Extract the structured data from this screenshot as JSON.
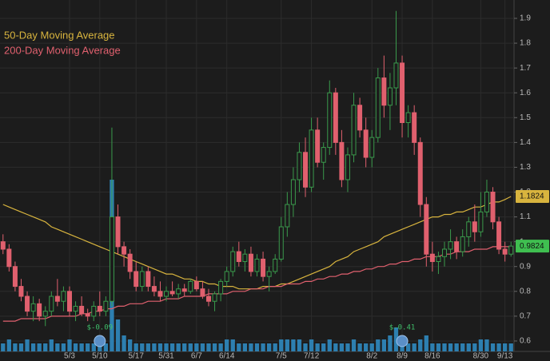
{
  "chart_data": {
    "type": "candlestick",
    "categories": [
      null,
      null,
      null,
      null,
      null,
      null,
      null,
      null,
      null,
      null,
      null,
      "5/3",
      null,
      null,
      null,
      null,
      "5/10",
      null,
      null,
      null,
      null,
      null,
      "5/17",
      null,
      null,
      null,
      null,
      "5/31",
      null,
      null,
      null,
      null,
      "6/7",
      null,
      null,
      null,
      null,
      "6/14",
      null,
      null,
      null,
      null,
      null,
      null,
      null,
      null,
      "7/5",
      null,
      null,
      null,
      null,
      "7/12",
      null,
      null,
      null,
      null,
      null,
      null,
      null,
      null,
      null,
      "8/2",
      null,
      null,
      null,
      null,
      "8/9",
      null,
      null,
      null,
      null,
      "8/16",
      null,
      null,
      null,
      null,
      null,
      null,
      null,
      "8/30",
      null,
      null,
      null,
      "9/13",
      null
    ],
    "ohlc": [
      [
        1.0,
        1.03,
        0.95,
        0.97
      ],
      [
        0.97,
        0.99,
        0.88,
        0.9
      ],
      [
        0.9,
        0.92,
        0.8,
        0.82
      ],
      [
        0.82,
        0.85,
        0.76,
        0.78
      ],
      [
        0.78,
        0.8,
        0.7,
        0.72
      ],
      [
        0.72,
        0.78,
        0.68,
        0.75
      ],
      [
        0.75,
        0.77,
        0.68,
        0.7
      ],
      [
        0.7,
        0.74,
        0.66,
        0.72
      ],
      [
        0.72,
        0.8,
        0.7,
        0.78
      ],
      [
        0.78,
        0.85,
        0.74,
        0.76
      ],
      [
        0.76,
        0.82,
        0.72,
        0.8
      ],
      [
        0.8,
        0.82,
        0.7,
        0.72
      ],
      [
        0.72,
        0.76,
        0.68,
        0.74
      ],
      [
        0.74,
        0.78,
        0.7,
        0.71
      ],
      [
        0.71,
        0.73,
        0.68,
        0.7
      ],
      [
        0.7,
        0.76,
        0.68,
        0.74
      ],
      [
        0.74,
        0.8,
        0.7,
        0.72
      ],
      [
        0.72,
        0.78,
        0.7,
        0.76
      ],
      [
        0.76,
        1.46,
        0.74,
        1.1
      ],
      [
        1.1,
        1.15,
        0.95,
        0.98
      ],
      [
        0.98,
        1.0,
        0.9,
        0.95
      ],
      [
        0.95,
        0.97,
        0.85,
        0.88
      ],
      [
        0.88,
        0.92,
        0.8,
        0.82
      ],
      [
        0.82,
        0.9,
        0.8,
        0.88
      ],
      [
        0.88,
        0.9,
        0.8,
        0.82
      ],
      [
        0.82,
        0.86,
        0.78,
        0.8
      ],
      [
        0.8,
        0.84,
        0.76,
        0.78
      ],
      [
        0.78,
        0.82,
        0.76,
        0.8
      ],
      [
        0.8,
        0.84,
        0.78,
        0.79
      ],
      [
        0.79,
        0.83,
        0.77,
        0.81
      ],
      [
        0.81,
        0.83,
        0.78,
        0.8
      ],
      [
        0.8,
        0.85,
        0.79,
        0.84
      ],
      [
        0.84,
        0.86,
        0.8,
        0.81
      ],
      [
        0.81,
        0.84,
        0.77,
        0.78
      ],
      [
        0.78,
        0.81,
        0.74,
        0.76
      ],
      [
        0.76,
        0.8,
        0.72,
        0.79
      ],
      [
        0.79,
        0.85,
        0.76,
        0.84
      ],
      [
        0.84,
        0.9,
        0.82,
        0.88
      ],
      [
        0.88,
        0.98,
        0.86,
        0.96
      ],
      [
        0.96,
        1.0,
        0.9,
        0.92
      ],
      [
        0.92,
        0.97,
        0.88,
        0.95
      ],
      [
        0.95,
        0.98,
        0.86,
        0.88
      ],
      [
        0.88,
        0.95,
        0.86,
        0.93
      ],
      [
        0.93,
        0.96,
        0.84,
        0.86
      ],
      [
        0.86,
        0.9,
        0.8,
        0.88
      ],
      [
        0.88,
        0.95,
        0.87,
        0.93
      ],
      [
        0.93,
        1.1,
        0.92,
        1.06
      ],
      [
        1.06,
        1.2,
        1.02,
        1.15
      ],
      [
        1.15,
        1.3,
        1.1,
        1.25
      ],
      [
        1.25,
        1.4,
        1.2,
        1.36
      ],
      [
        1.36,
        1.42,
        1.18,
        1.22
      ],
      [
        1.22,
        1.5,
        1.2,
        1.45
      ],
      [
        1.45,
        1.5,
        1.3,
        1.32
      ],
      [
        1.32,
        1.4,
        1.25,
        1.38
      ],
      [
        1.38,
        1.65,
        1.35,
        1.6
      ],
      [
        1.6,
        1.62,
        1.35,
        1.4
      ],
      [
        1.4,
        1.45,
        1.22,
        1.25
      ],
      [
        1.25,
        1.38,
        1.2,
        1.35
      ],
      [
        1.35,
        1.6,
        1.32,
        1.55
      ],
      [
        1.55,
        1.58,
        1.42,
        1.45
      ],
      [
        1.45,
        1.5,
        1.3,
        1.34
      ],
      [
        1.34,
        1.45,
        1.3,
        1.42
      ],
      [
        1.42,
        1.7,
        1.4,
        1.66
      ],
      [
        1.66,
        1.75,
        1.5,
        1.55
      ],
      [
        1.55,
        1.68,
        1.45,
        1.62
      ],
      [
        1.62,
        1.93,
        1.55,
        1.72
      ],
      [
        1.72,
        1.75,
        1.42,
        1.48
      ],
      [
        1.48,
        1.55,
        1.42,
        1.52
      ],
      [
        1.52,
        1.55,
        1.35,
        1.4
      ],
      [
        1.4,
        1.42,
        1.1,
        1.15
      ],
      [
        1.15,
        1.18,
        0.9,
        0.95
      ],
      [
        0.95,
        1.0,
        0.88,
        0.92
      ],
      [
        0.92,
        0.96,
        0.87,
        0.94
      ],
      [
        0.94,
        1.0,
        0.9,
        0.97
      ],
      [
        0.97,
        1.05,
        0.93,
        1.0
      ],
      [
        1.0,
        1.02,
        0.93,
        0.96
      ],
      [
        0.96,
        1.05,
        0.94,
        1.02
      ],
      [
        1.02,
        1.1,
        0.98,
        1.08
      ],
      [
        1.08,
        1.15,
        1.0,
        1.04
      ],
      [
        1.04,
        1.2,
        1.02,
        1.12
      ],
      [
        1.12,
        1.25,
        1.1,
        1.2
      ],
      [
        1.2,
        1.22,
        1.05,
        1.08
      ],
      [
        1.08,
        1.1,
        0.95,
        0.97
      ],
      [
        0.97,
        1.0,
        0.92,
        0.95
      ],
      [
        0.95,
        1.0,
        0.94,
        0.9824
      ]
    ],
    "up_color": "#3a9a4c",
    "down_color": "#e0606e",
    "volume": [
      2,
      3,
      2,
      2,
      3,
      2,
      2,
      2,
      3,
      2,
      2,
      3,
      2,
      2,
      2,
      2,
      3,
      2,
      43,
      8,
      4,
      3,
      2,
      2,
      2,
      2,
      2,
      2,
      2,
      2,
      2,
      2,
      2,
      2,
      2,
      2,
      2,
      3,
      3,
      2,
      2,
      2,
      2,
      2,
      2,
      2,
      3,
      3,
      3,
      3,
      2,
      3,
      2,
      2,
      3,
      2,
      2,
      2,
      3,
      2,
      2,
      2,
      3,
      3,
      4,
      6,
      3,
      2,
      2,
      3,
      4,
      2,
      2,
      2,
      2,
      2,
      2,
      2,
      2,
      3,
      3,
      2,
      2,
      2,
      2
    ],
    "volume_color": "#2d7fb0",
    "series": [
      {
        "name": "50-Day Moving Average",
        "color": "#d8b43e",
        "values": [
          1.15,
          1.14,
          1.13,
          1.12,
          1.11,
          1.1,
          1.09,
          1.08,
          1.06,
          1.05,
          1.04,
          1.03,
          1.02,
          1.01,
          1.0,
          0.99,
          0.98,
          0.97,
          0.96,
          0.95,
          0.94,
          0.93,
          0.92,
          0.91,
          0.9,
          0.89,
          0.88,
          0.87,
          0.87,
          0.86,
          0.85,
          0.85,
          0.84,
          0.84,
          0.83,
          0.83,
          0.82,
          0.82,
          0.82,
          0.81,
          0.81,
          0.81,
          0.81,
          0.82,
          0.82,
          0.82,
          0.83,
          0.83,
          0.84,
          0.85,
          0.86,
          0.87,
          0.88,
          0.89,
          0.9,
          0.92,
          0.93,
          0.94,
          0.96,
          0.97,
          0.98,
          0.99,
          1.0,
          1.02,
          1.03,
          1.04,
          1.05,
          1.06,
          1.07,
          1.08,
          1.09,
          1.1,
          1.1,
          1.11,
          1.11,
          1.12,
          1.12,
          1.13,
          1.14,
          1.14,
          1.15,
          1.16,
          1.16,
          1.17,
          1.1824
        ]
      },
      {
        "name": "200-Day Moving Average",
        "color": "#e0606e",
        "values": [
          0.68,
          0.68,
          0.68,
          0.69,
          0.69,
          0.69,
          0.69,
          0.69,
          0.7,
          0.7,
          0.7,
          0.7,
          0.7,
          0.71,
          0.71,
          0.72,
          0.72,
          0.73,
          0.73,
          0.74,
          0.74,
          0.75,
          0.75,
          0.75,
          0.76,
          0.76,
          0.76,
          0.77,
          0.77,
          0.77,
          0.78,
          0.78,
          0.78,
          0.78,
          0.79,
          0.79,
          0.79,
          0.79,
          0.8,
          0.8,
          0.8,
          0.81,
          0.81,
          0.81,
          0.82,
          0.82,
          0.82,
          0.83,
          0.83,
          0.83,
          0.84,
          0.84,
          0.85,
          0.85,
          0.86,
          0.86,
          0.87,
          0.87,
          0.88,
          0.88,
          0.89,
          0.89,
          0.9,
          0.9,
          0.91,
          0.91,
          0.92,
          0.92,
          0.93,
          0.93,
          0.94,
          0.94,
          0.94,
          0.95,
          0.95,
          0.96,
          0.96,
          0.96,
          0.97,
          0.97,
          0.97,
          0.98,
          0.98,
          0.98,
          0.98
        ]
      }
    ],
    "events": [
      {
        "category": "5/10",
        "label": "$-0.09"
      },
      {
        "category": "8/9",
        "label": "$-0.41"
      }
    ],
    "ylim": [
      0.558,
      1.974
    ],
    "yticks": [
      0.6,
      0.7,
      0.8,
      0.9,
      1,
      1.1,
      1.2,
      1.3,
      1.4,
      1.5,
      1.6,
      1.7,
      1.8,
      1.9
    ],
    "grid": true
  }
}
